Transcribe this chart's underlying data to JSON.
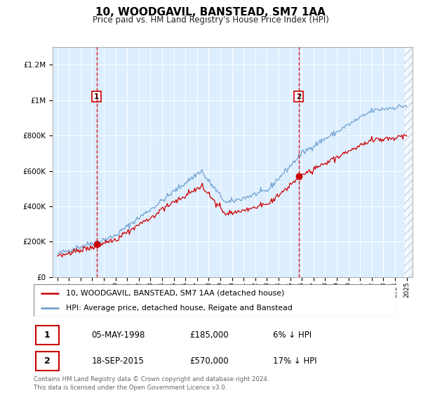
{
  "title": "10, WOODGAVIL, BANSTEAD, SM7 1AA",
  "subtitle": "Price paid vs. HM Land Registry's House Price Index (HPI)",
  "legend_line1": "10, WOODGAVIL, BANSTEAD, SM7 1AA (detached house)",
  "legend_line2": "HPI: Average price, detached house, Reigate and Banstead",
  "transaction1_date": "05-MAY-1998",
  "transaction1_price": "£185,000",
  "transaction1_hpi": "6% ↓ HPI",
  "transaction2_date": "18-SEP-2015",
  "transaction2_price": "£570,000",
  "transaction2_hpi": "17% ↓ HPI",
  "footer": "Contains HM Land Registry data © Crown copyright and database right 2024.\nThis data is licensed under the Open Government Licence v3.0.",
  "sale_color": "#cc0000",
  "hpi_color": "#6699cc",
  "background_color": "#ddeeff",
  "transaction1_x": 1998.37,
  "transaction1_y": 185000,
  "transaction2_x": 2015.72,
  "transaction2_y": 570000,
  "ylim": [
    0,
    1300000
  ],
  "xlim_start": 1994.6,
  "xlim_end": 2025.5
}
